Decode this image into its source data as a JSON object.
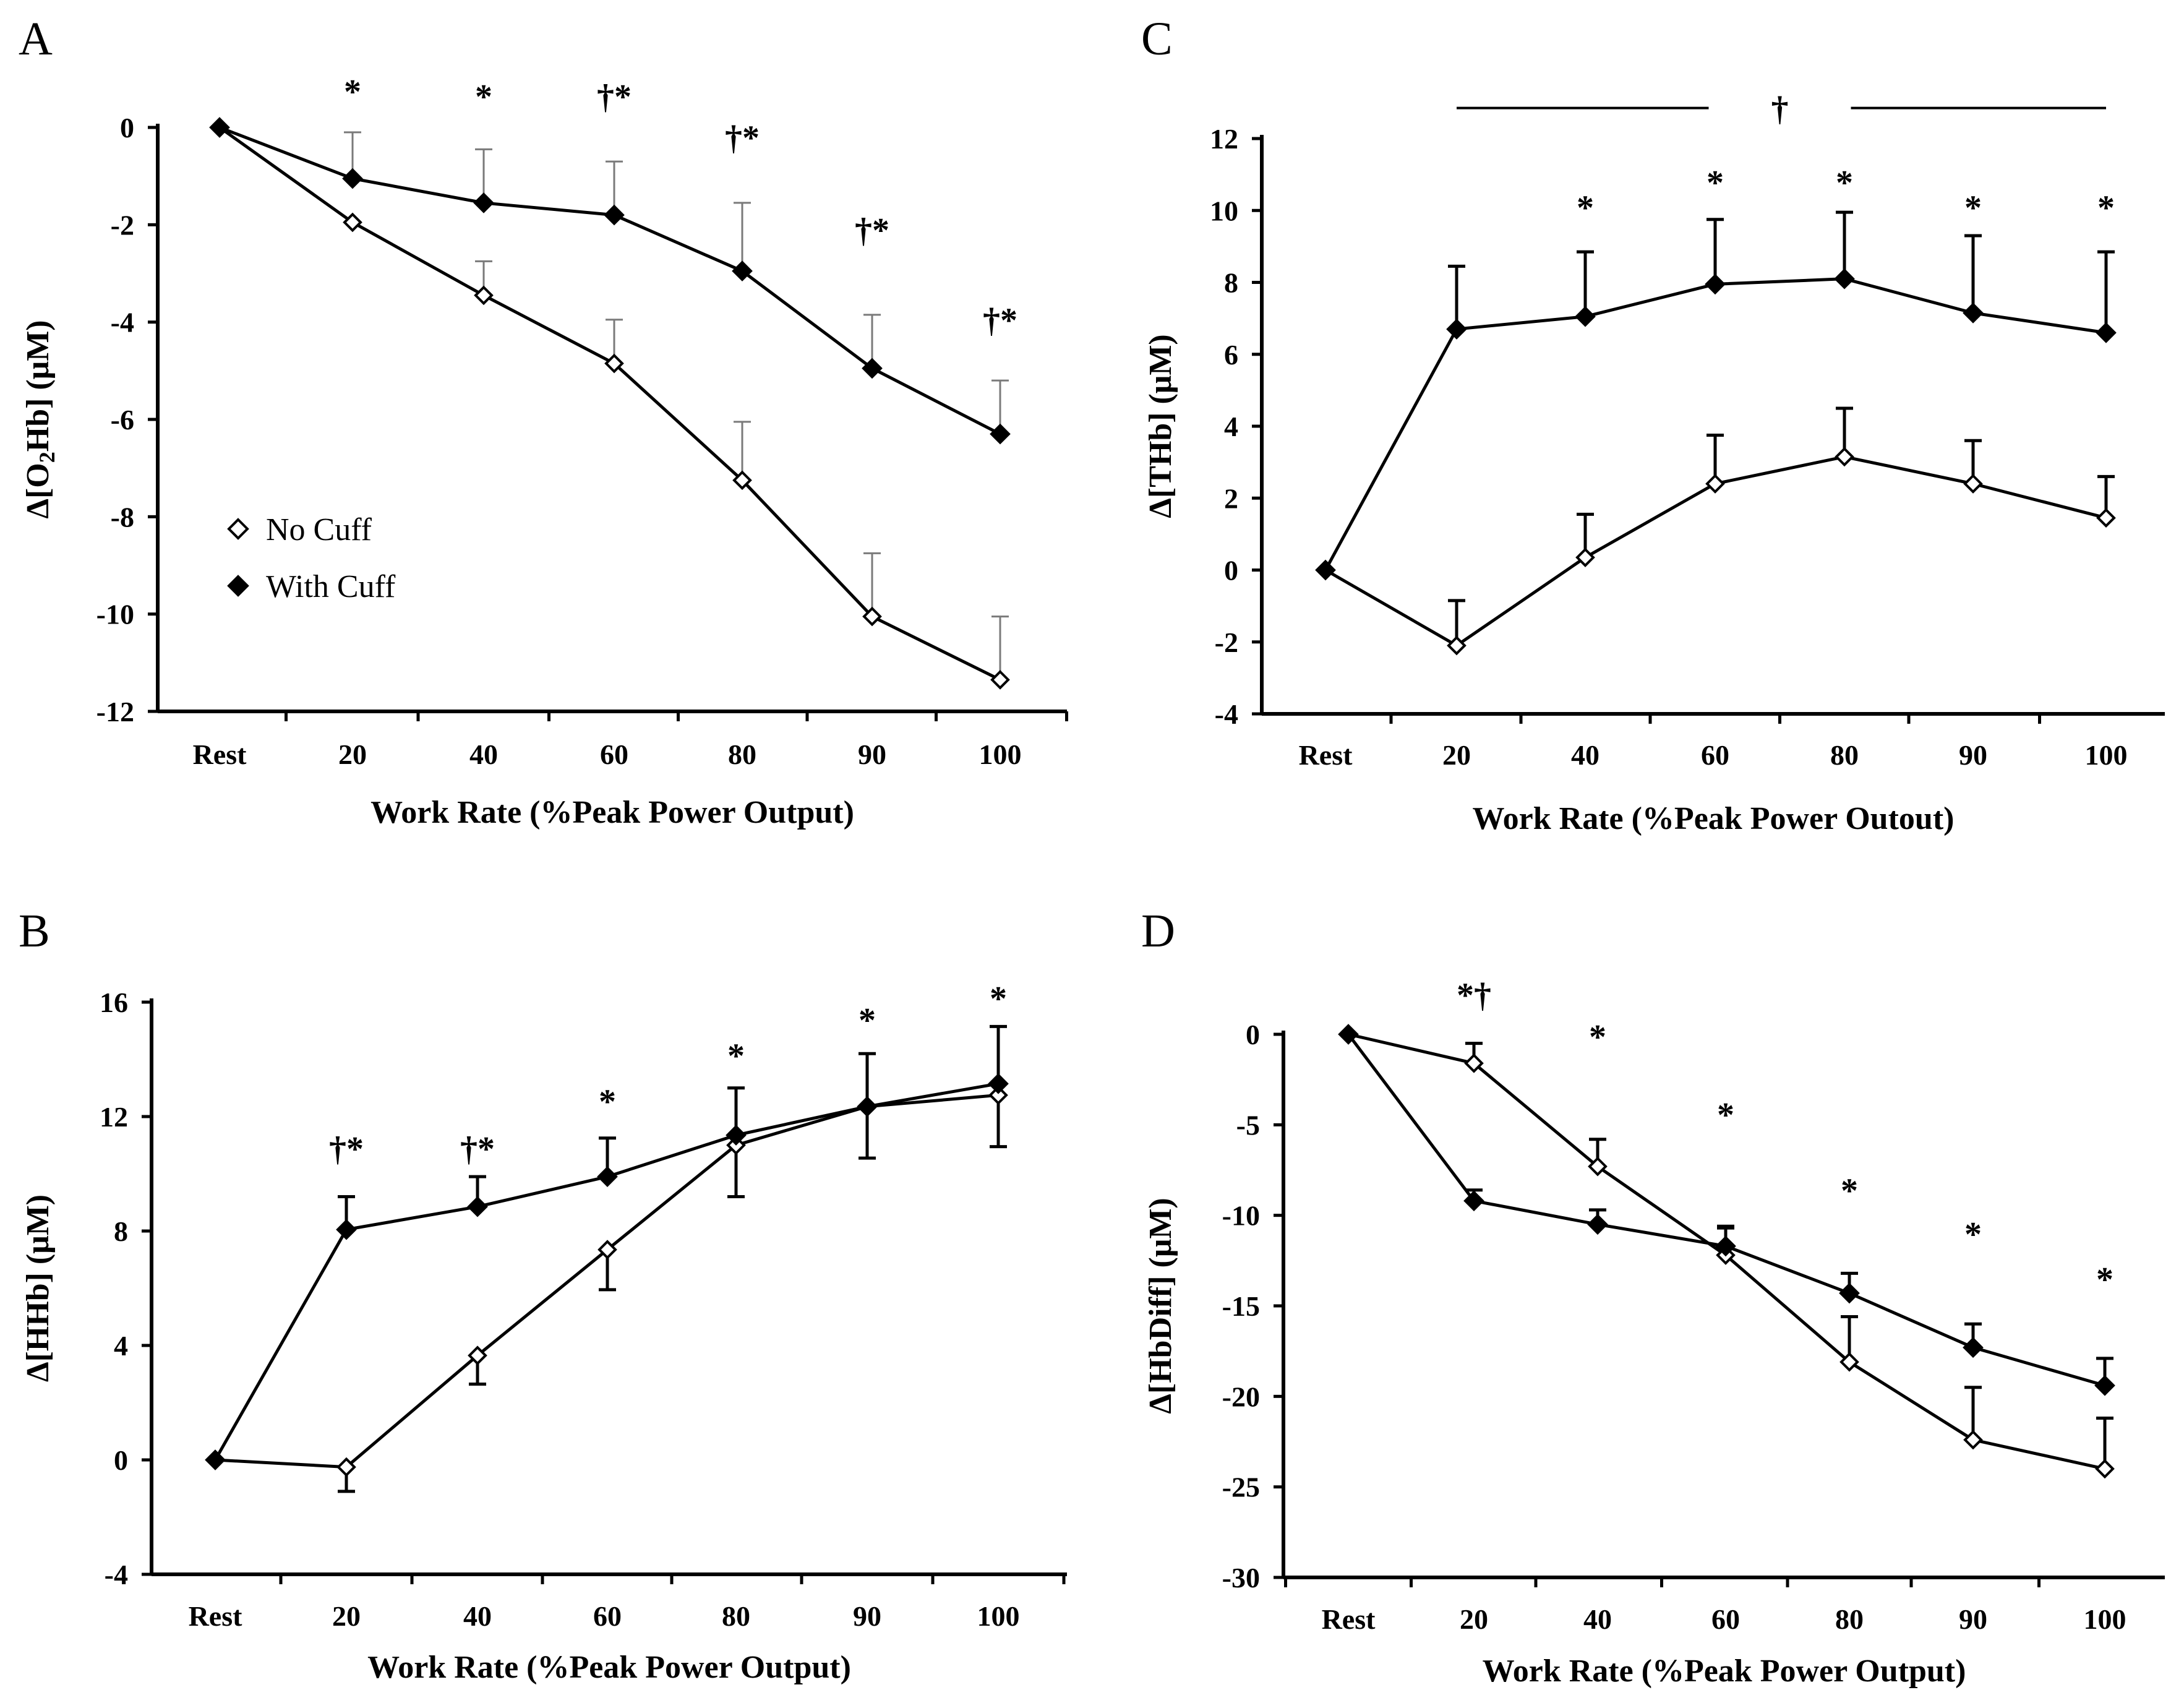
{
  "figure": {
    "legend": {
      "no_cuff": "No Cuff",
      "with_cuff": "With Cuff"
    },
    "series_colors": {
      "no_cuff_fill": "#ffffff",
      "with_cuff_fill": "#000000",
      "line": "#000000"
    }
  },
  "chart_data": [
    {
      "panel": "A",
      "type": "line",
      "ylabel_symbol": "Δ",
      "ylabel_main": "[O",
      "ylabel_sub": "2",
      "ylabel_tail": "Hb] (μM)",
      "xlabel": "Work Rate (%Peak Power Output)",
      "categories": [
        "Rest",
        "20",
        "40",
        "60",
        "80",
        "90",
        "100"
      ],
      "ylim": [
        -12,
        0
      ],
      "yticks": [
        0,
        -2,
        -4,
        -6,
        -8,
        -10,
        -12
      ],
      "ytick_labels": [
        "0",
        "-2",
        "-4",
        "-6",
        "-8",
        "-10",
        "-12"
      ],
      "error_bar_style": "thin-grey",
      "series": [
        {
          "name": "No Cuff",
          "marker": "open-diamond",
          "values": [
            0,
            -1.95,
            -3.45,
            -4.85,
            -7.25,
            -10.05,
            -11.35
          ],
          "err": [
            0,
            0,
            0.7,
            0.9,
            1.2,
            1.3,
            1.3
          ],
          "err_dir": "up"
        },
        {
          "name": "With Cuff",
          "marker": "filled-diamond",
          "values": [
            0,
            -1.05,
            -1.55,
            -1.8,
            -2.95,
            -4.95,
            -6.3
          ],
          "err": [
            0,
            0.95,
            1.1,
            1.1,
            1.4,
            1.1,
            1.1
          ],
          "err_dir": "up"
        }
      ],
      "annotations": [
        {
          "x": "20",
          "y": 0.75,
          "text": "*"
        },
        {
          "x": "40",
          "y": 0.65,
          "text": "*"
        },
        {
          "x": "60",
          "y": 0.65,
          "text": "†*"
        },
        {
          "x": "80",
          "y": -0.2,
          "text": "†*"
        },
        {
          "x": "90",
          "y": -2.1,
          "text": "†*"
        },
        {
          "x": "100",
          "y": -3.95,
          "text": "†*"
        }
      ],
      "legend_entries": [
        {
          "label": "No Cuff",
          "marker": "open-diamond",
          "position": "middle-left"
        },
        {
          "label": "With Cuff",
          "marker": "filled-diamond",
          "position": "middle-left"
        }
      ]
    },
    {
      "panel": "B",
      "type": "line",
      "ylabel_symbol": "Δ",
      "ylabel_main": "[HHb] (μM)",
      "xlabel": "Work Rate (%Peak Power Output)",
      "categories": [
        "Rest",
        "20",
        "40",
        "60",
        "80",
        "90",
        "100"
      ],
      "ylim": [
        -4,
        16
      ],
      "yticks": [
        16,
        12,
        8,
        4,
        0,
        -4
      ],
      "ytick_labels": [
        "16",
        "12",
        "8",
        "4",
        "0",
        "-4"
      ],
      "error_bar_style": "black",
      "series": [
        {
          "name": "No Cuff",
          "marker": "open-diamond",
          "values": [
            0,
            -0.25,
            3.65,
            7.35,
            11.0,
            12.35,
            12.75
          ],
          "err": [
            0,
            0.85,
            1.0,
            1.4,
            1.8,
            1.8,
            1.8
          ],
          "err_dir": "down"
        },
        {
          "name": "With Cuff",
          "marker": "filled-diamond",
          "values": [
            0,
            8.05,
            8.85,
            9.9,
            11.35,
            12.35,
            13.15
          ],
          "err": [
            0,
            1.15,
            1.05,
            1.35,
            1.65,
            1.85,
            2.0
          ],
          "err_dir": "up"
        }
      ],
      "annotations": [
        {
          "x": "20",
          "y": 10.9,
          "text": "†*"
        },
        {
          "x": "40",
          "y": 10.9,
          "text": "†*"
        },
        {
          "x": "60",
          "y": 12.55,
          "text": "*"
        },
        {
          "x": "80",
          "y": 14.15,
          "text": "*"
        },
        {
          "x": "90",
          "y": 15.4,
          "text": "*"
        },
        {
          "x": "100",
          "y": 16.15,
          "text": "*"
        }
      ]
    },
    {
      "panel": "C",
      "type": "line",
      "ylabel_symbol": "Δ",
      "ylabel_main": "[THb] (μM)",
      "xlabel": "Work Rate (%Peak Power Outout)",
      "categories": [
        "Rest",
        "20",
        "40",
        "60",
        "80",
        "90",
        "100"
      ],
      "ylim": [
        -4,
        12
      ],
      "yticks": [
        12,
        10,
        8,
        6,
        4,
        2,
        0,
        -2,
        -4
      ],
      "ytick_labels": [
        "12",
        "10",
        "8",
        "6",
        "4",
        "2",
        "0",
        "-2",
        "-4"
      ],
      "error_bar_style": "black",
      "series": [
        {
          "name": "No Cuff",
          "marker": "open-diamond",
          "values": [
            0,
            -2.1,
            0.35,
            2.4,
            3.15,
            2.4,
            1.45
          ],
          "err": [
            0,
            1.25,
            1.2,
            1.35,
            1.35,
            1.2,
            1.15
          ],
          "err_dir": "up"
        },
        {
          "name": "With Cuff",
          "marker": "filled-diamond",
          "values": [
            0,
            6.7,
            7.05,
            7.95,
            8.1,
            7.15,
            6.6
          ],
          "err": [
            0,
            1.75,
            1.8,
            1.8,
            1.85,
            2.15,
            2.25
          ],
          "err_dir": "up"
        }
      ],
      "annotations": [
        {
          "x": "40",
          "y": 10.1,
          "text": "*"
        },
        {
          "x": "60",
          "y": 10.8,
          "text": "*"
        },
        {
          "x": "80",
          "y": 10.8,
          "text": "*"
        },
        {
          "x": "90",
          "y": 10.1,
          "text": "*"
        },
        {
          "x": "100",
          "y": 10.1,
          "text": "*"
        }
      ],
      "bracket": {
        "from": "20",
        "to": "100",
        "y": 12.85,
        "text": "†",
        "text_x": "70"
      }
    },
    {
      "panel": "D",
      "type": "line",
      "ylabel_symbol": "Δ",
      "ylabel_main": "[HbDiff] (μM)",
      "xlabel": "Work Rate (%Peak Power Output)",
      "categories": [
        "Rest",
        "20",
        "40",
        "60",
        "80",
        "90",
        "100"
      ],
      "ylim": [
        -30,
        0
      ],
      "yticks": [
        0,
        -5,
        -10,
        -15,
        -20,
        -25,
        -30
      ],
      "ytick_labels": [
        "0",
        "-5",
        "-10",
        "-15",
        "-20",
        "-25",
        "-30"
      ],
      "error_bar_style": "black",
      "series": [
        {
          "name": "No Cuff",
          "marker": "open-diamond",
          "values": [
            0,
            -1.6,
            -7.3,
            -12.2,
            -18.1,
            -22.4,
            -24.0
          ],
          "err": [
            0,
            1.1,
            1.5,
            1.6,
            2.5,
            2.9,
            2.8
          ],
          "err_dir": "up"
        },
        {
          "name": "With Cuff",
          "marker": "filled-diamond",
          "values": [
            0,
            -9.2,
            -10.5,
            -11.7,
            -14.3,
            -17.3,
            -19.4
          ],
          "err": [
            0,
            0.6,
            0.8,
            1.0,
            1.1,
            1.3,
            1.5
          ],
          "err_dir": "up"
        }
      ],
      "annotations": [
        {
          "x": "20",
          "y": 2.2,
          "text": "*†"
        },
        {
          "x": "40",
          "y": -0.1,
          "text": "*"
        },
        {
          "x": "60",
          "y": -4.4,
          "text": "*"
        },
        {
          "x": "80",
          "y": -8.6,
          "text": "*"
        },
        {
          "x": "90",
          "y": -11.0,
          "text": "*"
        },
        {
          "x": "100",
          "y": -13.5,
          "text": "*"
        }
      ]
    }
  ]
}
